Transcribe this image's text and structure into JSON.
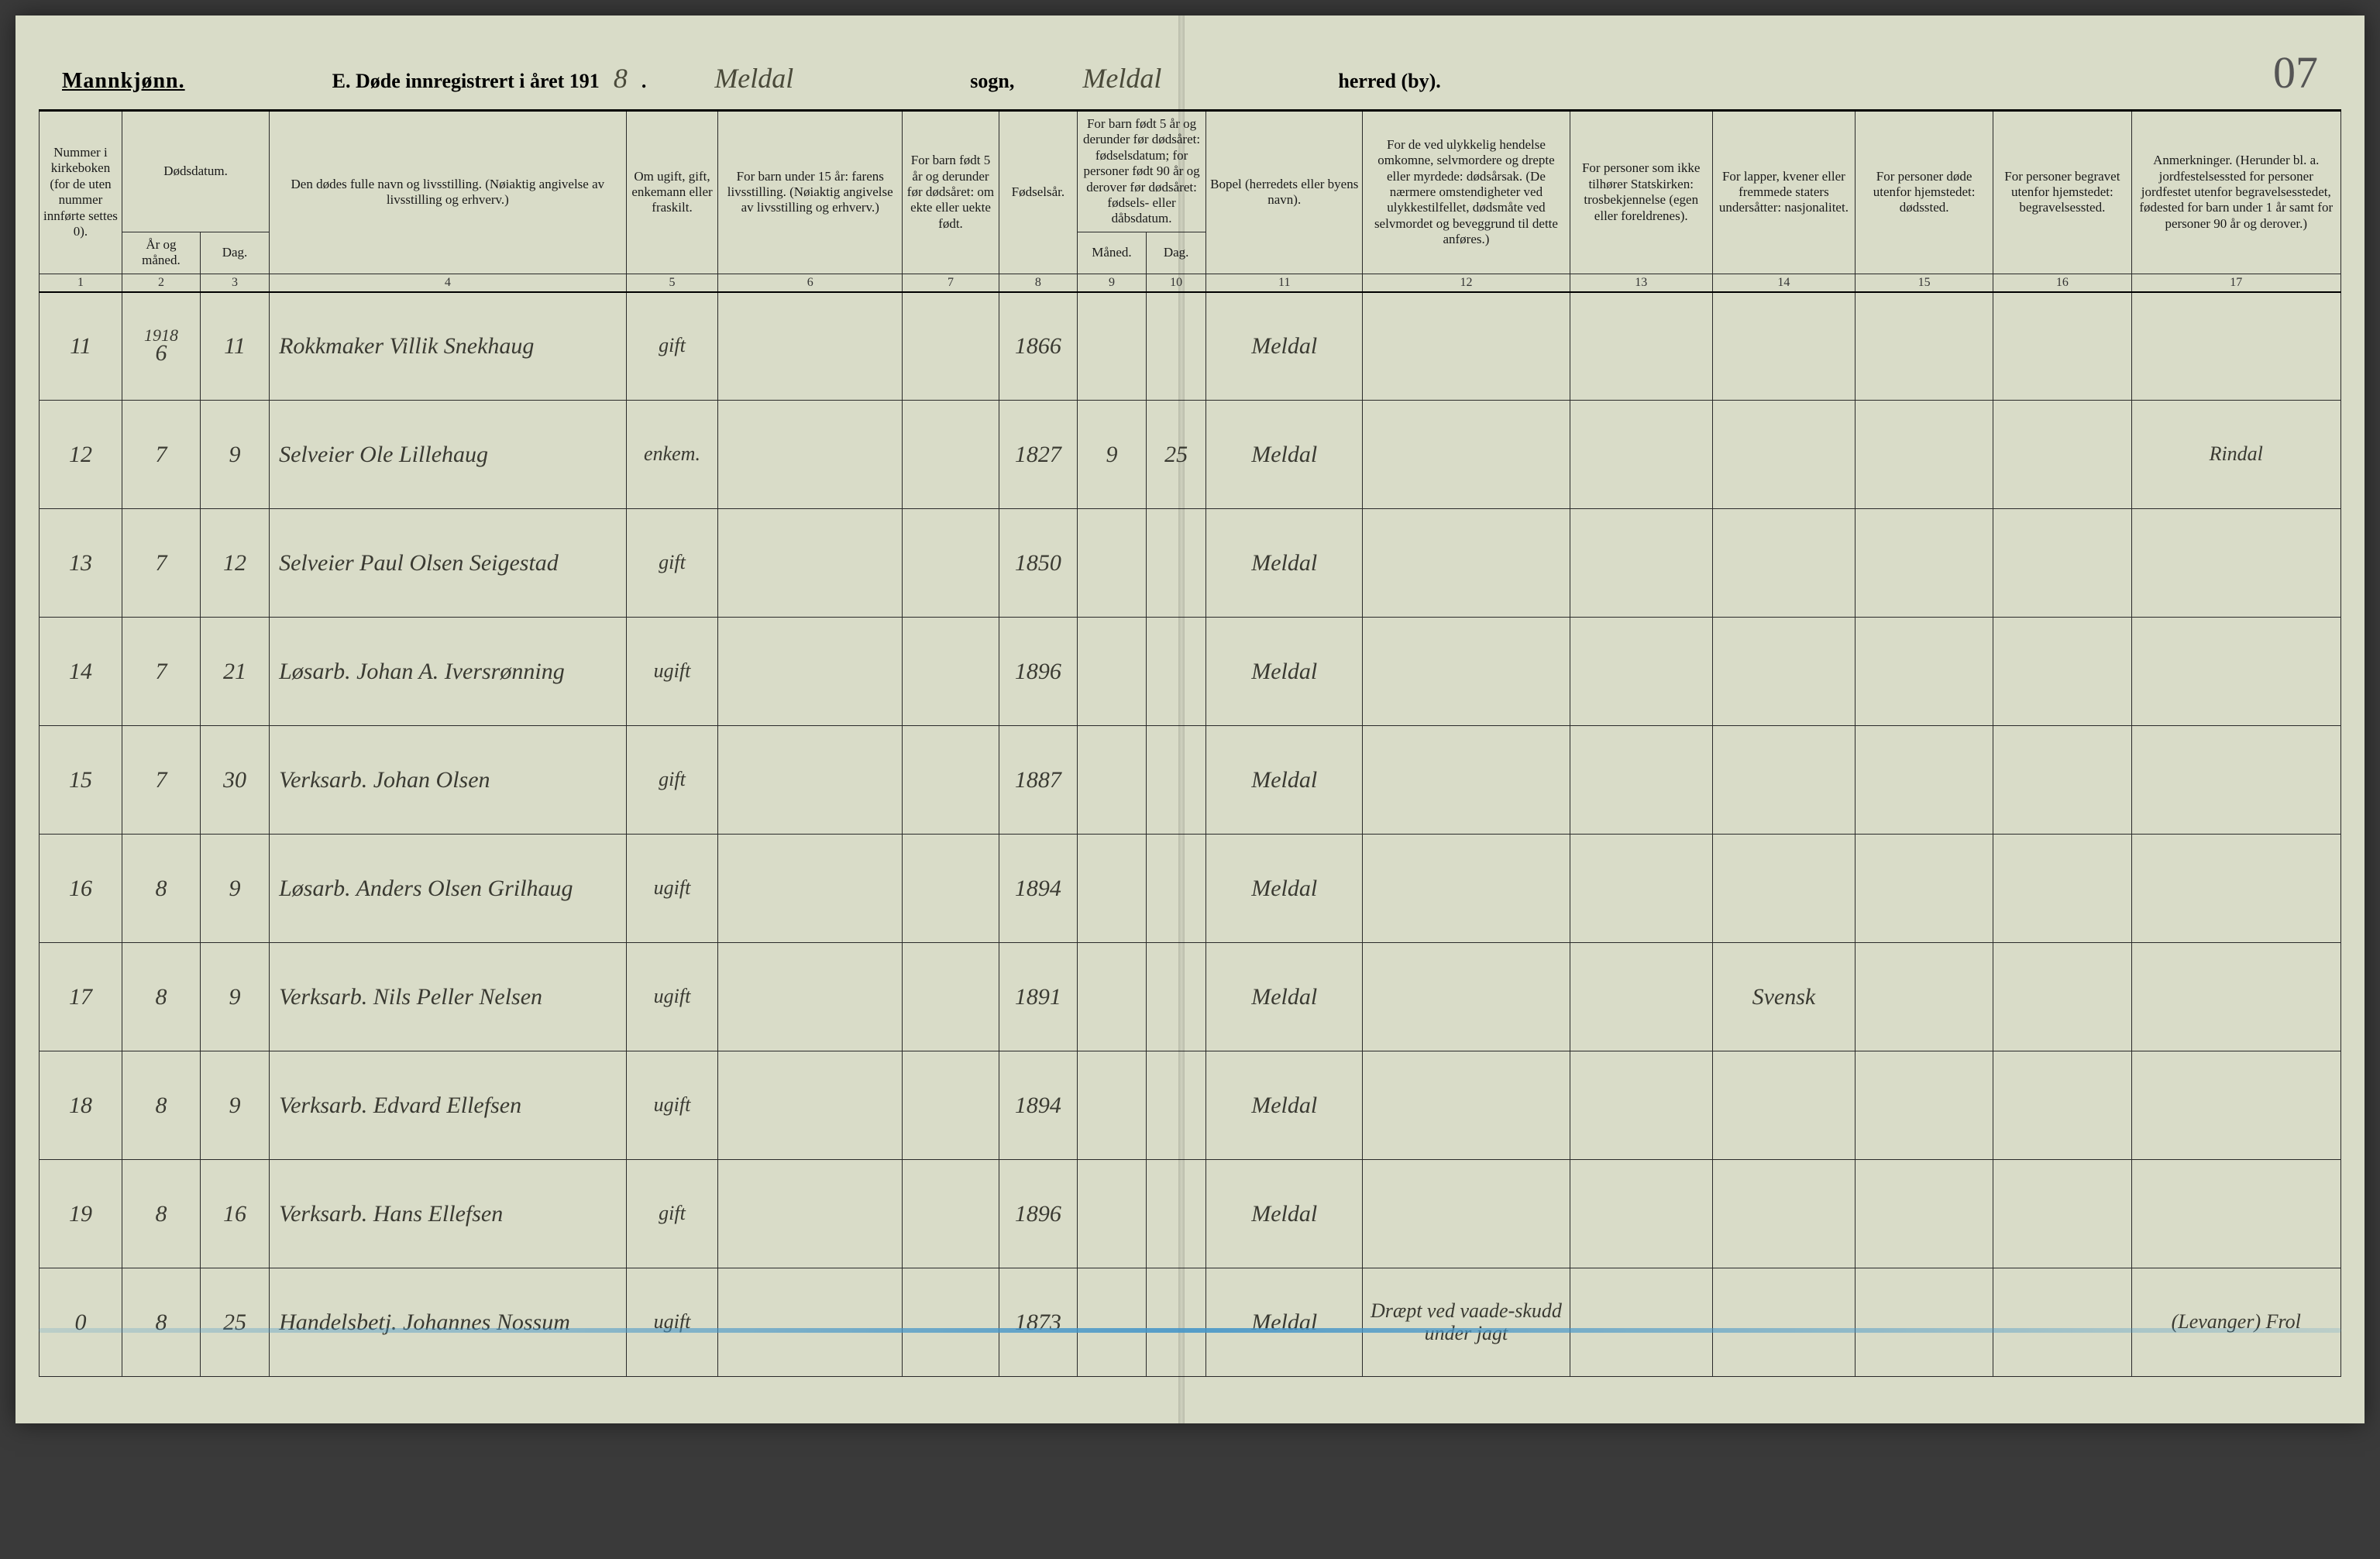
{
  "header": {
    "gender": "Mannkjønn.",
    "title_prefix": "E. Døde innregistrert i året 191",
    "year_digit": "8",
    "sogn_hand": "Meldal",
    "sogn_label": "sogn,",
    "herred_hand": "Meldal",
    "herred_label": "herred (by).",
    "page_number": "07"
  },
  "columns": {
    "c1": "Nummer i kirke­boken (for de uten nummer innførte settes 0).",
    "c2_group": "Dødsdatum.",
    "c2": "År og måned.",
    "c3": "Dag.",
    "c4": "Den dødes fulle navn og livsstilling. (Nøiaktig angivelse av livsstilling og erhverv.)",
    "c5": "Om ugift, gift, enke­mann eller fraskilt.",
    "c6": "For barn under 15 år: farens livsstilling. (Nøiaktig angivelse av livsstilling og erhverv.)",
    "c7": "For barn født 5 år og derunder før dødsåret: om ekte eller uekte født.",
    "c8": "Fødsels­år.",
    "c9_group": "For barn født 5 år og derunder før dødsåret: fødselsdatum; for personer født 90 år og derover før dødsåret: fødsels- eller dåbsdatum.",
    "c9": "Måned.",
    "c10": "Dag.",
    "c11": "Bopel (herredets eller byens navn).",
    "c12": "For de ved ulykkelig hendelse omkomne, selvmordere og drepte eller myrdede: dødsårsak. (De nærmere omsten­digheter ved ulykkes­tilfellet, dødsmåte ved selvmordet og beveg­grund til dette anføres.)",
    "c13": "For personer som ikke tilhører Statskirken: trosbekjennelse (egen eller foreldrenes).",
    "c14": "For lapper, kvener eller fremmede staters undersåtter: nasjonalitet.",
    "c15": "For personer døde utenfor hjemstedet: dødssted.",
    "c16": "For personer begravet utenfor hjemstedet: begravelsessted.",
    "c17": "Anmerkninger. (Herunder bl. a. jordfestelsessted for personer jordfestet utenfor begravelses­stedet, fødested for barn under 1 år samt for personer 90 år og derover.)"
  },
  "colnums": [
    "1",
    "2",
    "3",
    "4",
    "5",
    "6",
    "7",
    "8",
    "9",
    "10",
    "11",
    "12",
    "13",
    "14",
    "15",
    "16",
    "17"
  ],
  "rows": [
    {
      "num": "11",
      "year_above": "1918",
      "ym": "6",
      "day": "11",
      "name": "Rokkmaker Villik Snekhaug",
      "status": "gift",
      "fathers": "",
      "ekte": "",
      "birth": "1866",
      "bm": "",
      "bd": "",
      "place": "Meldal",
      "cause": "",
      "faith": "",
      "nat": "",
      "deathpl": "",
      "burial": "",
      "note": ""
    },
    {
      "num": "12",
      "ym": "7",
      "day": "9",
      "name": "Selveier Ole Lillehaug",
      "status": "enkem.",
      "fathers": "",
      "ekte": "",
      "birth": "1827",
      "bm": "9",
      "bd": "25",
      "place": "Meldal",
      "cause": "",
      "faith": "",
      "nat": "",
      "deathpl": "",
      "burial": "",
      "note": "Rindal"
    },
    {
      "num": "13",
      "ym": "7",
      "day": "12",
      "name": "Selveier Paul Olsen Seigestad",
      "status": "gift",
      "fathers": "",
      "ekte": "",
      "birth": "1850",
      "bm": "",
      "bd": "",
      "place": "Meldal",
      "cause": "",
      "faith": "",
      "nat": "",
      "deathpl": "",
      "burial": "",
      "note": ""
    },
    {
      "num": "14",
      "ym": "7",
      "day": "21",
      "name": "Løsarb. Johan A. Iversrønning",
      "status": "ugift",
      "fathers": "",
      "ekte": "",
      "birth": "1896",
      "bm": "",
      "bd": "",
      "place": "Meldal",
      "cause": "",
      "faith": "",
      "nat": "",
      "deathpl": "",
      "burial": "",
      "note": ""
    },
    {
      "num": "15",
      "ym": "7",
      "day": "30",
      "name": "Verksarb. Johan Olsen",
      "status": "gift",
      "fathers": "",
      "ekte": "",
      "birth": "1887",
      "bm": "",
      "bd": "",
      "place": "Meldal",
      "cause": "",
      "faith": "",
      "nat": "",
      "deathpl": "",
      "burial": "",
      "note": ""
    },
    {
      "num": "16",
      "ym": "8",
      "day": "9",
      "name": "Løsarb. Anders Olsen Grilhaug",
      "status": "ugift",
      "fathers": "",
      "ekte": "",
      "birth": "1894",
      "bm": "",
      "bd": "",
      "place": "Meldal",
      "cause": "",
      "faith": "",
      "nat": "",
      "deathpl": "",
      "burial": "",
      "note": ""
    },
    {
      "num": "17",
      "ym": "8",
      "day": "9",
      "name": "Verksarb. Nils Peller Nelsen",
      "status": "ugift",
      "fathers": "",
      "ekte": "",
      "birth": "1891",
      "bm": "",
      "bd": "",
      "place": "Meldal",
      "cause": "",
      "faith": "",
      "nat": "Svensk",
      "deathpl": "",
      "burial": "",
      "note": ""
    },
    {
      "num": "18",
      "ym": "8",
      "day": "9",
      "name": "Verksarb. Edvard Ellefsen",
      "status": "ugift",
      "fathers": "",
      "ekte": "",
      "birth": "1894",
      "bm": "",
      "bd": "",
      "place": "Meldal",
      "cause": "",
      "faith": "",
      "nat": "",
      "deathpl": "",
      "burial": "",
      "note": ""
    },
    {
      "num": "19",
      "ym": "8",
      "day": "16",
      "name": "Verksarb. Hans Ellefsen",
      "status": "gift",
      "fathers": "",
      "ekte": "",
      "birth": "1896",
      "bm": "",
      "bd": "",
      "place": "Meldal",
      "cause": "",
      "faith": "",
      "nat": "",
      "deathpl": "",
      "burial": "",
      "note": ""
    },
    {
      "num": "0",
      "ym": "8",
      "day": "25",
      "name": "Handelsbetj. Johannes Nossum",
      "status": "ugift",
      "fathers": "",
      "ekte": "",
      "birth": "1873",
      "bm": "",
      "bd": "",
      "place": "Meldal",
      "cause": "Dræpt ved vaade-skudd under jagt",
      "faith": "",
      "nat": "",
      "deathpl": "",
      "burial": "",
      "note": "(Levanger) Frol"
    }
  ],
  "style": {
    "paper_bg": "#d9dcc8",
    "ink": "#1a1a1a",
    "hand_ink": "#3a3a32",
    "crayon_blue": "#5aa3cc"
  }
}
